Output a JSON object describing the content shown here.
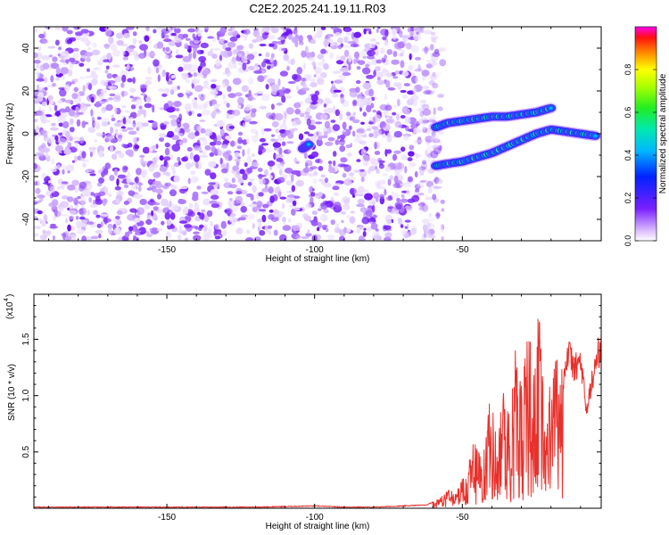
{
  "figure": {
    "title": "C2E2.2025.241.19.11.R03"
  },
  "chart_data": [
    {
      "type": "heatmap",
      "title": "C2E2.2025.241.19.11.R03",
      "xlabel": "Height of straight line (km)",
      "ylabel": "Frequency (Hz)",
      "xlim": [
        -195,
        -3
      ],
      "ylim": [
        -50,
        50
      ],
      "xticks": [
        -150,
        -100,
        -50
      ],
      "yticks": [
        -40,
        -20,
        0,
        20,
        40
      ],
      "noise_region_x": [
        -195,
        -59
      ],
      "features": [
        {
          "name": "upper-branch",
          "x": [
            -59,
            -55,
            -50,
            -45,
            -40,
            -35,
            -30,
            -25,
            -20
          ],
          "y": [
            3,
            5,
            6,
            7,
            8,
            8,
            9,
            10,
            12
          ]
        },
        {
          "name": "lower-branch",
          "x": [
            -59,
            -55,
            -50,
            -45,
            -40,
            -35,
            -30,
            -25,
            -20,
            -15,
            -10,
            -5
          ],
          "y": [
            -15,
            -14,
            -13,
            -11,
            -9,
            -6,
            -3,
            0,
            2,
            1,
            0,
            -1
          ]
        },
        {
          "name": "isolated-spot",
          "x": [
            -104,
            -102
          ],
          "y": [
            -7,
            -5
          ]
        }
      ],
      "colorbar": {
        "label": "Normalized spectral amplitude",
        "range": [
          0,
          1
        ],
        "ticks": [
          "0.0",
          "0.2",
          "0.4",
          "0.6",
          "0.8"
        ]
      }
    },
    {
      "type": "line",
      "xlabel": "Height of straight line (km)",
      "ylabel": "SNR (10 * v/v)",
      "scale_label": "(x10",
      "scale_exp": "4",
      "xlim": [
        -195,
        -3
      ],
      "ylim": [
        0,
        1.9
      ],
      "xticks": [
        -150,
        -100,
        -50
      ],
      "yticks": [
        "0.5",
        "1.0",
        "1.5"
      ],
      "series": [
        {
          "name": "SNR",
          "color": "#e8312c",
          "x": [
            -195,
            -180,
            -160,
            -140,
            -120,
            -100,
            -90,
            -80,
            -70,
            -62,
            -58,
            -55,
            -52,
            -50,
            -48,
            -46,
            -44,
            -42,
            -40,
            -38,
            -36,
            -34,
            -32,
            -30,
            -28,
            -26,
            -24,
            -22,
            -20,
            -18,
            -16,
            -14,
            -12,
            -10,
            -8,
            -6,
            -4,
            -3
          ],
          "y": [
            0.01,
            0.01,
            0.01,
            0.01,
            0.01,
            0.02,
            0.01,
            0.01,
            0.02,
            0.03,
            0.08,
            0.15,
            0.12,
            0.25,
            0.35,
            0.55,
            0.45,
            0.7,
            0.9,
            0.6,
            1.05,
            0.75,
            1.3,
            0.95,
            1.5,
            1.1,
            1.7,
            0.8,
            1.1,
            1.4,
            1.2,
            1.45,
            1.3,
            1.38,
            0.9,
            1.2,
            1.45,
            1.5
          ]
        }
      ]
    }
  ]
}
